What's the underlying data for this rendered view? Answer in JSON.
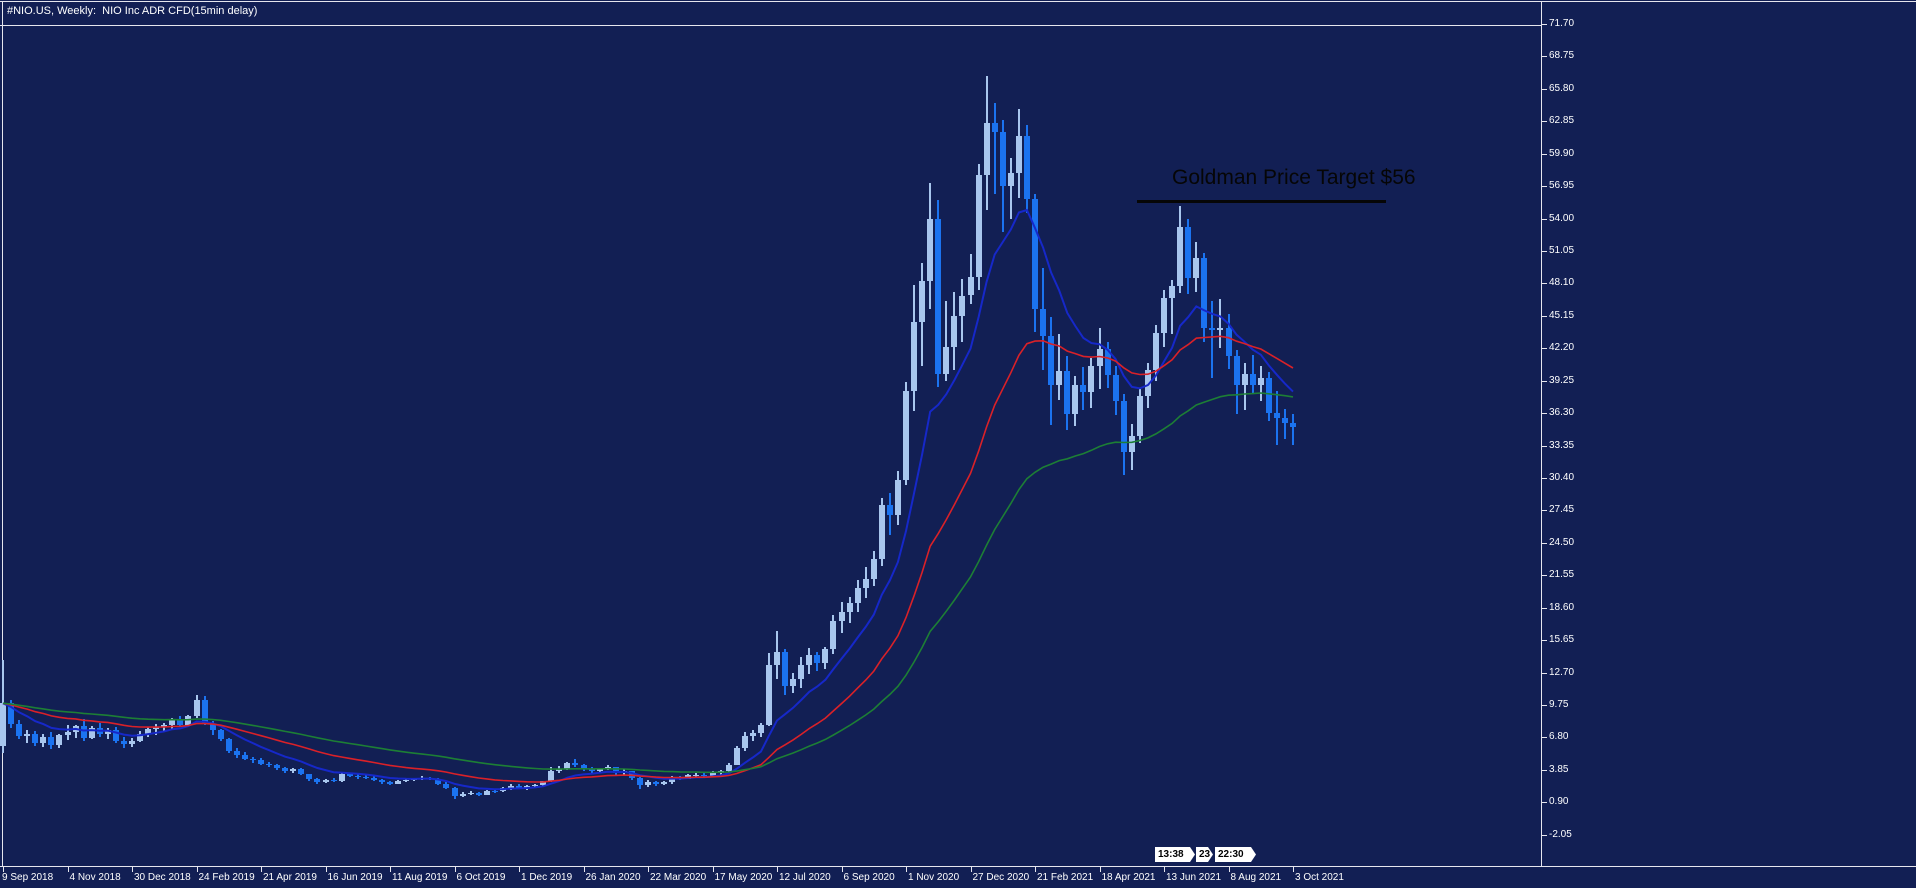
{
  "title": "#NIO.US, Weekly:  NIO Inc ADR CFD(15min delay)",
  "annotation": {
    "text": "Goldman Price Target $56",
    "color": "#060606"
  },
  "axis_time_badges": [
    "13:38",
    "23",
    "22:30"
  ],
  "chart_data": {
    "type": "candlestick",
    "symbol": "#NIO.US",
    "timeframe": "Weekly",
    "description": "NIO Inc ADR CFD(15min delay)",
    "title": "Goldman Price Target $56",
    "x_labels": [
      "9 Sep 2018",
      "4 Nov 2018",
      "30 Dec 2018",
      "24 Feb 2019",
      "21 Apr 2019",
      "16 Jun 2019",
      "11 Aug 2019",
      "6 Oct 2019",
      "1 Dec 2019",
      "26 Jan 2020",
      "22 Mar 2020",
      "17 May 2020",
      "12 Jul 2020",
      "6 Sep 2020",
      "1 Nov 2020",
      "27 Dec 2020",
      "21 Feb 2021",
      "18 Apr 2021",
      "13 Jun 2021",
      "8 Aug 2021",
      "3 Oct 2021"
    ],
    "y_labels": [
      71.7,
      68.75,
      65.8,
      62.85,
      59.9,
      56.95,
      54.0,
      51.05,
      48.1,
      45.15,
      42.2,
      39.25,
      36.3,
      33.35,
      30.4,
      27.45,
      24.5,
      21.55,
      18.6,
      15.65,
      12.7,
      9.75,
      6.8,
      3.85,
      0.9,
      -2.05
    ],
    "y_step": 2.95,
    "ylim": [
      -4.6,
      71.9
    ],
    "weeks_per_x_label": 8,
    "grid": false,
    "legend": "none",
    "annotation_price_level": 55.6,
    "ohlc": [
      [
        6.0,
        13.8,
        5.35,
        9.9
      ],
      [
        9.9,
        10.17,
        7.65,
        8.04
      ],
      [
        8.04,
        8.4,
        6.61,
        6.93
      ],
      [
        6.93,
        7.49,
        6.3,
        7.07
      ],
      [
        7.07,
        7.4,
        6.05,
        6.25
      ],
      [
        6.25,
        7.09,
        5.9,
        6.85
      ],
      [
        6.85,
        7.28,
        5.71,
        6.1
      ],
      [
        6.1,
        7.15,
        5.8,
        7.04
      ],
      [
        7.04,
        7.89,
        6.56,
        7.3
      ],
      [
        7.3,
        7.95,
        6.71,
        7.85
      ],
      [
        7.85,
        8.44,
        6.5,
        6.77
      ],
      [
        6.77,
        7.8,
        6.62,
        7.65
      ],
      [
        7.65,
        8.1,
        6.82,
        7.1
      ],
      [
        7.1,
        7.67,
        6.68,
        7.5
      ],
      [
        7.5,
        7.7,
        6.33,
        6.45
      ],
      [
        6.45,
        6.83,
        5.83,
        6.2
      ],
      [
        6.2,
        6.75,
        5.96,
        6.5
      ],
      [
        6.5,
        7.4,
        6.35,
        7.15
      ],
      [
        7.15,
        7.72,
        6.8,
        7.6
      ],
      [
        7.6,
        8.05,
        7.05,
        7.75
      ],
      [
        7.75,
        8.15,
        7.3,
        7.9
      ],
      [
        7.9,
        8.6,
        7.6,
        8.45
      ],
      [
        8.45,
        8.7,
        7.75,
        7.95
      ],
      [
        7.95,
        8.85,
        7.8,
        8.75
      ],
      [
        8.75,
        10.64,
        8.55,
        10.16
      ],
      [
        10.16,
        10.6,
        7.91,
        8.06
      ],
      [
        8.06,
        8.3,
        7.05,
        7.49
      ],
      [
        7.49,
        7.6,
        6.45,
        6.62
      ],
      [
        6.62,
        6.7,
        5.4,
        5.52
      ],
      [
        5.52,
        5.85,
        4.95,
        5.2
      ],
      [
        5.2,
        5.45,
        4.75,
        4.85
      ],
      [
        4.85,
        5.0,
        4.5,
        4.78
      ],
      [
        4.78,
        4.9,
        4.25,
        4.41
      ],
      [
        4.41,
        4.6,
        4.1,
        4.25
      ],
      [
        4.25,
        4.35,
        3.85,
        4.0
      ],
      [
        4.0,
        4.1,
        3.6,
        3.75
      ],
      [
        3.75,
        4.05,
        3.55,
        3.95
      ],
      [
        3.95,
        4.0,
        3.38,
        3.45
      ],
      [
        3.45,
        3.5,
        2.85,
        2.98
      ],
      [
        2.98,
        3.15,
        2.6,
        2.72
      ],
      [
        2.72,
        3.05,
        2.65,
        2.95
      ],
      [
        2.95,
        3.1,
        2.7,
        2.8
      ],
      [
        2.8,
        3.55,
        2.75,
        3.45
      ],
      [
        3.45,
        3.6,
        3.15,
        3.3
      ],
      [
        3.3,
        3.45,
        3.05,
        3.2
      ],
      [
        3.2,
        3.35,
        3.0,
        3.15
      ],
      [
        3.15,
        3.3,
        2.85,
        2.95
      ],
      [
        2.95,
        3.05,
        2.6,
        2.7
      ],
      [
        2.7,
        2.85,
        2.5,
        2.6
      ],
      [
        2.6,
        2.9,
        2.55,
        2.85
      ],
      [
        2.85,
        3.0,
        2.7,
        2.9
      ],
      [
        2.9,
        3.1,
        2.8,
        3.0
      ],
      [
        3.0,
        3.25,
        2.9,
        3.15
      ],
      [
        3.15,
        3.2,
        2.95,
        3.05
      ],
      [
        3.05,
        3.1,
        2.5,
        2.6
      ],
      [
        2.6,
        2.75,
        2.11,
        2.17
      ],
      [
        2.17,
        2.25,
        1.19,
        1.47
      ],
      [
        1.47,
        1.85,
        1.4,
        1.68
      ],
      [
        1.68,
        1.9,
        1.55,
        1.72
      ],
      [
        1.72,
        1.85,
        1.5,
        1.58
      ],
      [
        1.58,
        2.05,
        1.55,
        1.95
      ],
      [
        1.95,
        2.1,
        1.75,
        1.9
      ],
      [
        1.9,
        2.25,
        1.8,
        2.15
      ],
      [
        2.15,
        2.6,
        2.05,
        2.4
      ],
      [
        2.4,
        2.55,
        2.1,
        2.2
      ],
      [
        2.2,
        2.45,
        2.05,
        2.35
      ],
      [
        2.35,
        2.6,
        2.2,
        2.5
      ],
      [
        2.5,
        2.85,
        2.4,
        2.8
      ],
      [
        2.8,
        4.1,
        2.75,
        3.72
      ],
      [
        3.72,
        4.2,
        3.6,
        3.9
      ],
      [
        3.9,
        4.6,
        3.85,
        4.45
      ],
      [
        4.45,
        4.86,
        4.1,
        4.25
      ],
      [
        4.25,
        4.35,
        3.75,
        3.9
      ],
      [
        3.9,
        4.15,
        3.6,
        3.75
      ],
      [
        3.75,
        4.05,
        3.65,
        3.95
      ],
      [
        3.95,
        4.25,
        3.8,
        4.1
      ],
      [
        4.1,
        4.15,
        3.4,
        3.55
      ],
      [
        3.55,
        3.9,
        3.35,
        3.7
      ],
      [
        3.7,
        3.75,
        2.95,
        3.1
      ],
      [
        3.1,
        3.2,
        2.11,
        2.45
      ],
      [
        2.45,
        2.9,
        2.3,
        2.75
      ],
      [
        2.75,
        2.85,
        2.4,
        2.55
      ],
      [
        2.55,
        2.8,
        2.45,
        2.7
      ],
      [
        2.7,
        3.25,
        2.6,
        3.1
      ],
      [
        3.1,
        3.3,
        2.9,
        3.05
      ],
      [
        3.05,
        3.45,
        3.0,
        3.35
      ],
      [
        3.35,
        3.6,
        3.2,
        3.4
      ],
      [
        3.4,
        3.55,
        3.1,
        3.25
      ],
      [
        3.25,
        3.7,
        3.15,
        3.6
      ],
      [
        3.6,
        3.85,
        3.4,
        3.75
      ],
      [
        3.75,
        4.45,
        3.65,
        4.3
      ],
      [
        4.3,
        6.0,
        4.25,
        5.85
      ],
      [
        5.85,
        7.25,
        5.6,
        6.9
      ],
      [
        6.9,
        7.45,
        6.5,
        7.2
      ],
      [
        7.2,
        8.1,
        6.8,
        7.9
      ],
      [
        7.9,
        14.5,
        7.85,
        13.4
      ],
      [
        13.4,
        16.44,
        12.1,
        14.6
      ],
      [
        14.6,
        14.8,
        10.7,
        11.5
      ],
      [
        11.5,
        12.7,
        10.8,
        12.1
      ],
      [
        12.1,
        14.1,
        11.3,
        13.4
      ],
      [
        13.4,
        14.9,
        12.6,
        14.3
      ],
      [
        14.3,
        14.6,
        12.8,
        13.6
      ],
      [
        13.6,
        15.0,
        13.0,
        14.8
      ],
      [
        14.8,
        17.9,
        14.4,
        17.4
      ],
      [
        17.4,
        19.1,
        16.3,
        18.2
      ],
      [
        18.2,
        19.6,
        17.2,
        19.0
      ],
      [
        19.0,
        21.1,
        18.2,
        20.4
      ],
      [
        20.4,
        22.3,
        19.5,
        21.2
      ],
      [
        21.2,
        23.8,
        20.6,
        23.0
      ],
      [
        23.0,
        28.6,
        22.4,
        27.9
      ],
      [
        27.9,
        29.0,
        25.2,
        27.0
      ],
      [
        27.0,
        31.0,
        26.1,
        30.2
      ],
      [
        30.2,
        39.1,
        29.8,
        38.3
      ],
      [
        38.3,
        48.0,
        36.5,
        44.6
      ],
      [
        44.6,
        50.0,
        40.6,
        48.3
      ],
      [
        48.3,
        57.2,
        45.8,
        54.0
      ],
      [
        54.0,
        55.7,
        38.7,
        39.9
      ],
      [
        39.9,
        46.5,
        39.2,
        42.3
      ],
      [
        42.3,
        47.3,
        40.2,
        45.1
      ],
      [
        45.1,
        48.5,
        42.8,
        47.0
      ],
      [
        47.0,
        50.8,
        46.2,
        48.7
      ],
      [
        48.7,
        59.0,
        47.5,
        58.0
      ],
      [
        58.0,
        66.99,
        54.8,
        62.7
      ],
      [
        62.7,
        64.5,
        56.2,
        61.9
      ],
      [
        61.9,
        63.0,
        52.8,
        57.0
      ],
      [
        57.0,
        59.5,
        54.0,
        58.1
      ],
      [
        58.1,
        64.0,
        55.9,
        61.5
      ],
      [
        61.5,
        62.5,
        54.5,
        55.8
      ],
      [
        55.8,
        56.2,
        43.7,
        45.8
      ],
      [
        45.8,
        49.5,
        40.2,
        43.3
      ],
      [
        43.3,
        45.0,
        35.2,
        38.9
      ],
      [
        38.9,
        43.5,
        37.5,
        40.1
      ],
      [
        40.1,
        41.5,
        34.8,
        36.2
      ],
      [
        36.2,
        39.7,
        35.1,
        38.9
      ],
      [
        38.9,
        40.5,
        36.6,
        38.2
      ],
      [
        38.2,
        41.3,
        36.8,
        40.6
      ],
      [
        40.6,
        44.0,
        38.5,
        42.1
      ],
      [
        42.1,
        42.8,
        38.6,
        39.8
      ],
      [
        39.8,
        40.6,
        36.1,
        37.4
      ],
      [
        37.4,
        38.0,
        30.71,
        32.8
      ],
      [
        32.8,
        35.3,
        31.1,
        34.2
      ],
      [
        34.2,
        38.5,
        33.6,
        37.9
      ],
      [
        37.9,
        40.9,
        36.8,
        40.2
      ],
      [
        40.2,
        44.3,
        39.2,
        43.6
      ],
      [
        43.6,
        47.5,
        42.3,
        46.8
      ],
      [
        46.8,
        48.4,
        43.5,
        47.9
      ],
      [
        47.9,
        55.13,
        47.2,
        53.2
      ],
      [
        53.2,
        54.0,
        47.1,
        48.6
      ],
      [
        48.6,
        51.9,
        47.3,
        50.4
      ],
      [
        50.4,
        50.9,
        42.8,
        44.0
      ],
      [
        44.0,
        46.5,
        39.5,
        43.9
      ],
      [
        43.9,
        46.7,
        42.2,
        44.0
      ],
      [
        44.0,
        45.3,
        40.3,
        41.5
      ],
      [
        41.5,
        42.0,
        36.2,
        38.9
      ],
      [
        38.9,
        40.9,
        36.6,
        39.9
      ],
      [
        39.9,
        41.6,
        38.1,
        38.9
      ],
      [
        38.9,
        40.6,
        37.4,
        39.5
      ],
      [
        39.5,
        40.0,
        35.6,
        36.3
      ],
      [
        36.3,
        38.3,
        33.4,
        35.9
      ],
      [
        35.9,
        36.7,
        33.9,
        35.4
      ],
      [
        35.4,
        36.2,
        33.4,
        35.0
      ]
    ],
    "moving_averages": [
      {
        "name": "fast-ma",
        "type": "EMA",
        "period": 10,
        "color": "#1628c9",
        "width": 2
      },
      {
        "name": "medium-ma",
        "type": "EMA",
        "period": 26,
        "color": "#da2128",
        "width": 1.6
      },
      {
        "name": "slow-ma",
        "type": "EMA",
        "period": 52,
        "color": "#1d7f35",
        "width": 1.6
      }
    ],
    "colors": {
      "background": "#121f54",
      "bull_candle": "#a8c6ee",
      "bear_candle": "#1b73f0",
      "axis_line": "#e6e6ee",
      "axis_text": "#ffffff",
      "annotation": "#060606"
    }
  }
}
